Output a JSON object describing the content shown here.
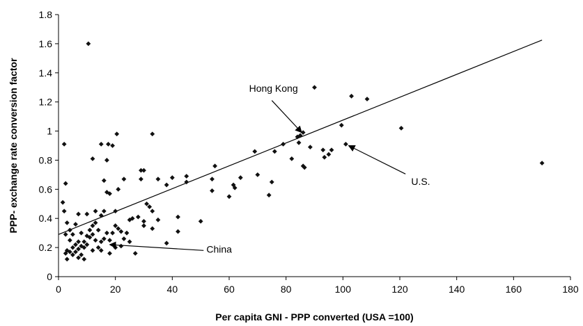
{
  "chart_data": {
    "type": "scatter",
    "xlabel": "Per capita GNI - PPP converted (USA =100)",
    "ylabel": "PPP- exchange rate conversion factor",
    "xlim": [
      0,
      180
    ],
    "ylim": [
      0,
      1.8
    ],
    "xticks": [
      "0",
      "20",
      "40",
      "60",
      "80",
      "100",
      "120",
      "140",
      "160",
      "180"
    ],
    "yticks": [
      "0",
      "0.2",
      "0.4",
      "0.6",
      "0.8",
      "1",
      "1.2",
      "1.4",
      "1.6",
      "1.8"
    ],
    "grid": false,
    "points": [
      [
        10.5,
        1.6
      ],
      [
        103,
        1.24
      ],
      [
        108.5,
        1.22
      ],
      [
        90,
        1.3
      ],
      [
        120.5,
        1.02
      ],
      [
        99.5,
        1.04
      ],
      [
        170,
        0.78
      ],
      [
        86,
        0.99
      ],
      [
        85,
        0.97
      ],
      [
        84,
        0.96
      ],
      [
        84.5,
        0.92
      ],
      [
        79,
        0.91
      ],
      [
        101,
        0.91
      ],
      [
        88.5,
        0.89
      ],
      [
        93,
        0.87
      ],
      [
        96,
        0.87
      ],
      [
        95,
        0.84
      ],
      [
        93.5,
        0.82
      ],
      [
        86,
        0.76
      ],
      [
        86.5,
        0.75
      ],
      [
        82,
        0.81
      ],
      [
        76,
        0.86
      ],
      [
        69,
        0.86
      ],
      [
        75,
        0.65
      ],
      [
        74,
        0.56
      ],
      [
        70,
        0.7
      ],
      [
        64,
        0.68
      ],
      [
        61.5,
        0.63
      ],
      [
        62,
        0.61
      ],
      [
        60,
        0.55
      ],
      [
        55,
        0.76
      ],
      [
        54,
        0.67
      ],
      [
        54,
        0.59
      ],
      [
        50,
        0.38
      ],
      [
        45,
        0.69
      ],
      [
        45,
        0.65
      ],
      [
        40,
        0.68
      ],
      [
        38,
        0.63
      ],
      [
        35,
        0.67
      ],
      [
        33,
        0.98
      ],
      [
        20.5,
        0.98
      ],
      [
        19,
        0.9
      ],
      [
        15,
        0.91
      ],
      [
        17.5,
        0.91
      ],
      [
        12,
        0.81
      ],
      [
        17,
        0.8
      ],
      [
        2,
        0.91
      ],
      [
        2.5,
        0.64
      ],
      [
        1.5,
        0.51
      ],
      [
        2,
        0.45
      ],
      [
        29,
        0.73
      ],
      [
        30,
        0.73
      ],
      [
        29,
        0.67
      ],
      [
        23,
        0.67
      ],
      [
        21,
        0.6
      ],
      [
        18,
        0.57
      ],
      [
        17,
        0.58
      ],
      [
        16,
        0.66
      ],
      [
        20,
        0.45
      ],
      [
        16,
        0.45
      ],
      [
        15,
        0.42
      ],
      [
        13,
        0.45
      ],
      [
        10,
        0.43
      ],
      [
        32,
        0.48
      ],
      [
        31,
        0.5
      ],
      [
        33,
        0.45
      ],
      [
        30,
        0.38
      ],
      [
        28,
        0.41
      ],
      [
        26,
        0.4
      ],
      [
        25,
        0.39
      ],
      [
        35,
        0.39
      ],
      [
        33,
        0.33
      ],
      [
        30,
        0.35
      ],
      [
        42,
        0.41
      ],
      [
        42,
        0.31
      ],
      [
        38,
        0.23
      ],
      [
        27,
        0.16
      ],
      [
        24,
        0.3
      ],
      [
        23,
        0.26
      ],
      [
        22,
        0.31
      ],
      [
        21,
        0.33
      ],
      [
        20,
        0.35
      ],
      [
        19,
        0.3
      ],
      [
        18,
        0.25
      ],
      [
        17,
        0.3
      ],
      [
        16,
        0.26
      ],
      [
        15,
        0.24
      ],
      [
        15,
        0.18
      ],
      [
        14,
        0.2
      ],
      [
        14,
        0.32
      ],
      [
        13,
        0.37
      ],
      [
        12,
        0.29
      ],
      [
        11,
        0.32
      ],
      [
        11,
        0.27
      ],
      [
        10,
        0.22
      ],
      [
        10,
        0.28
      ],
      [
        9,
        0.2
      ],
      [
        9,
        0.24
      ],
      [
        8,
        0.3
      ],
      [
        8,
        0.21
      ],
      [
        8,
        0.15
      ],
      [
        7,
        0.24
      ],
      [
        7,
        0.19
      ],
      [
        7,
        0.13
      ],
      [
        6,
        0.17
      ],
      [
        6,
        0.22
      ],
      [
        6,
        0.36
      ],
      [
        5,
        0.29
      ],
      [
        5,
        0.2
      ],
      [
        5,
        0.15
      ],
      [
        4,
        0.17
      ],
      [
        4,
        0.25
      ],
      [
        4,
        0.32
      ],
      [
        3,
        0.18
      ],
      [
        3,
        0.12
      ],
      [
        3,
        0.37
      ],
      [
        2.5,
        0.29
      ],
      [
        2.5,
        0.16
      ],
      [
        9,
        0.12
      ],
      [
        12,
        0.18
      ],
      [
        13,
        0.25
      ],
      [
        18,
        0.16
      ],
      [
        20,
        0.2
      ],
      [
        22,
        0.21
      ],
      [
        25,
        0.24
      ],
      [
        12,
        0.35
      ],
      [
        7,
        0.43
      ]
    ],
    "trendline": [
      [
        0,
        0.29
      ],
      [
        170,
        1.625
      ]
    ],
    "annotations": [
      {
        "label": "Hong Kong",
        "text_at": [
          67,
          1.27
        ],
        "arrow_from": [
          75,
          1.21
        ],
        "arrow_to": [
          85.5,
          0.99
        ]
      },
      {
        "label": "U.S.",
        "text_at": [
          124,
          0.63
        ],
        "arrow_from": [
          122,
          0.705
        ],
        "arrow_to": [
          102,
          0.9
        ]
      },
      {
        "label": "China",
        "text_at": [
          52,
          0.165
        ],
        "arrow_from": [
          51,
          0.18
        ],
        "arrow_to": [
          18,
          0.22
        ]
      }
    ]
  }
}
